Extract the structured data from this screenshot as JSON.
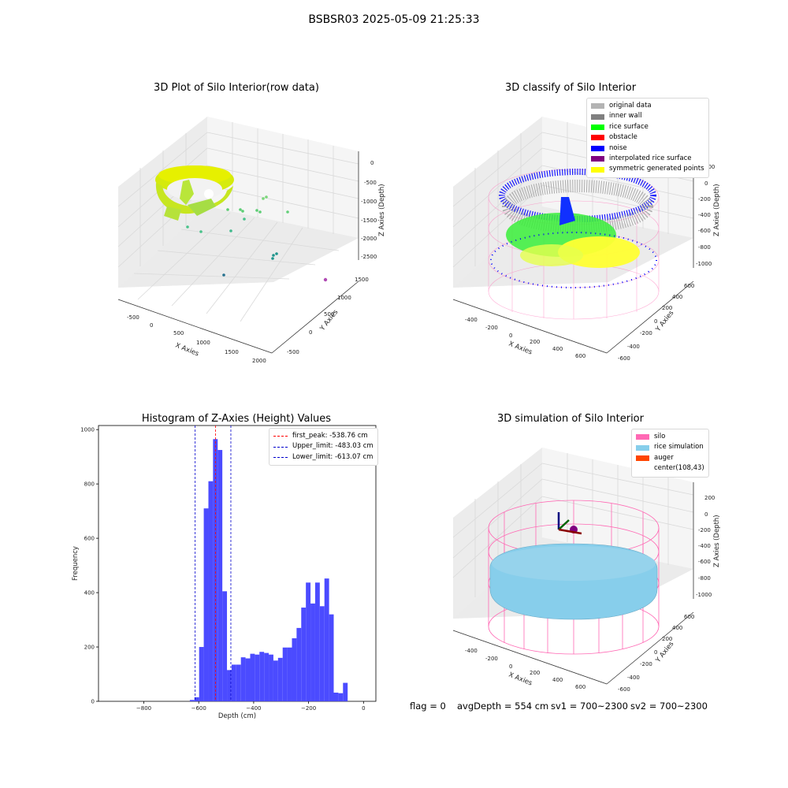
{
  "figure_title": "BSBSR03 2025-05-09 21:25:33",
  "footer": {
    "flag": "flag = 0",
    "avg_depth": "avgDepth = 554 cm",
    "sv1": "sv1 = 700~2300",
    "sv2": "sv2 = 700~2300"
  },
  "colors": {
    "histogram_bar": "#4b4bff",
    "first_peak_line": "#ff0000",
    "limit_lines": "#0000cc",
    "silo": "#ff69b4",
    "rice_simulation": "#87ceeb",
    "auger": "#ff4500",
    "original_data": "#b3b3b3",
    "inner_wall": "#808080",
    "rice_surface": "#00ff00",
    "obstacle": "#ff0000",
    "noise": "#0000ff",
    "interpolated_rice_surface": "#800080",
    "symmetric_generated_points": "#ffff00"
  },
  "panels": {
    "raw": {
      "title": "3D Plot of Silo Interior(row data)",
      "xlabel": "X Axies",
      "ylabel": "Y Axies",
      "zlabel": "Z Axies (Depth)",
      "x_ticks": [
        "-500",
        "0",
        "500",
        "1000",
        "1500",
        "2000"
      ],
      "y_ticks": [
        "-500",
        "0",
        "500",
        "1000",
        "1500"
      ],
      "z_ticks": [
        "0",
        "-500",
        "-1000",
        "-1500",
        "-2000",
        "-2500"
      ]
    },
    "classify": {
      "title": "3D classify of Silo Interior",
      "xlabel": "X Axies",
      "ylabel": "Y Axies",
      "zlabel": "Z Axies (Depth)",
      "x_ticks": [
        "-400",
        "-200",
        "0",
        "200",
        "400",
        "600"
      ],
      "y_ticks": [
        "-600",
        "-400",
        "-200",
        "0",
        "200",
        "400",
        "600"
      ],
      "z_ticks": [
        "200",
        "0",
        "-200",
        "-400",
        "-600",
        "-800",
        "-1000"
      ],
      "legend": [
        {
          "label": "original data",
          "color": "#b3b3b3"
        },
        {
          "label": "inner wall",
          "color": "#808080"
        },
        {
          "label": "rice surface",
          "color": "#00ff00"
        },
        {
          "label": "obstacle",
          "color": "#ff0000"
        },
        {
          "label": "noise",
          "color": "#0000ff"
        },
        {
          "label": "interpolated rice surface",
          "color": "#800080"
        },
        {
          "label": "symmetric generated points",
          "color": "#ffff00"
        }
      ]
    },
    "histogram": {
      "title": "Histogram of Z-Axies (Height) Values",
      "xlabel": "Depth (cm)",
      "ylabel": "Frequency",
      "legend": [
        {
          "label": "first_peak: -538.76 cm",
          "color": "#ff0000"
        },
        {
          "label": "Upper_limit: -483.03 cm",
          "color": "#0000cc"
        },
        {
          "label": "Lower_limit: -613.07 cm",
          "color": "#0000cc"
        }
      ]
    },
    "simulation": {
      "title": "3D simulation of Silo Interior",
      "xlabel": "X Axies",
      "ylabel": "Y Axies",
      "zlabel": "Z Axies (Depth)",
      "x_ticks": [
        "-400",
        "-200",
        "0",
        "200",
        "400",
        "600"
      ],
      "y_ticks": [
        "-600",
        "-400",
        "-200",
        "0",
        "200",
        "400",
        "600"
      ],
      "z_ticks": [
        "200",
        "0",
        "-200",
        "-400",
        "-600",
        "-800",
        "-1000"
      ],
      "legend": [
        {
          "label": "silo",
          "color": "#ff69b4"
        },
        {
          "label": "rice simulation",
          "color": "#87ceeb"
        },
        {
          "label": "auger",
          "color": "#ff4500"
        },
        {
          "label": "center(108,43)",
          "color": ""
        }
      ]
    }
  },
  "chart_data": {
    "type": "bar",
    "title": "Histogram of Z-Axies (Height) Values",
    "xlabel": "Depth (cm)",
    "ylabel": "Frequency",
    "xlim": [
      -965,
      45
    ],
    "ylim": [
      0,
      1015
    ],
    "x_ticks": [
      -800,
      -600,
      -400,
      -200,
      0
    ],
    "y_ticks": [
      0,
      200,
      400,
      600,
      800,
      1000
    ],
    "bin_width": 16.9,
    "bins_left": [
      -632.4,
      -615.5,
      -598.6,
      -581.7,
      -564.8,
      -547.9,
      -531.0,
      -514.1,
      -497.2,
      -480.3,
      -463.4,
      -446.5,
      -429.6,
      -412.7,
      -395.8,
      -378.9,
      -362.0,
      -345.1,
      -328.2,
      -311.3,
      -294.4,
      -277.5,
      -260.6,
      -243.7,
      -226.8,
      -209.9,
      -193.0,
      -176.1,
      -159.2,
      -142.3,
      -125.4,
      -108.5,
      -91.6,
      -74.7,
      -57.8,
      -40.9,
      -24.0,
      -7.1
    ],
    "values": [
      5,
      15,
      200,
      710,
      810,
      965,
      925,
      405,
      115,
      135,
      135,
      162,
      158,
      175,
      172,
      182,
      178,
      172,
      150,
      160,
      198,
      198,
      232,
      270,
      345,
      437,
      360,
      437,
      350,
      452,
      320,
      32,
      30,
      68,
      0,
      0,
      0,
      0
    ],
    "lines": [
      {
        "name": "first_peak",
        "x": -538.76,
        "style": "dashed",
        "color": "#ff0000"
      },
      {
        "name": "Upper_limit",
        "x": -483.03,
        "style": "dashed",
        "color": "#0000cc"
      },
      {
        "name": "Lower_limit",
        "x": -613.07,
        "style": "dashed",
        "color": "#0000cc"
      }
    ],
    "legend_position": "top-right"
  }
}
